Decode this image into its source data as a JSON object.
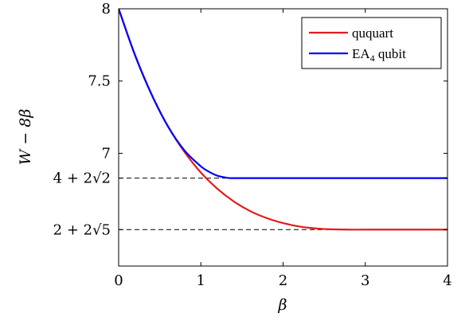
{
  "chart_data": {
    "type": "line",
    "xlabel": "β",
    "ylabel": "W − 8β",
    "xlim": [
      0,
      4
    ],
    "ylim": [
      6.22,
      8
    ],
    "grid": false,
    "legend_placement": "top-right",
    "x_ticks": [
      {
        "value": 0,
        "label": "0"
      },
      {
        "value": 1,
        "label": "1"
      },
      {
        "value": 2,
        "label": "2"
      },
      {
        "value": 3,
        "label": "3"
      },
      {
        "value": 4,
        "label": "4"
      }
    ],
    "y_ticks": [
      {
        "value": 8,
        "label": "8"
      },
      {
        "value": 7.5,
        "label": "7.5"
      },
      {
        "value": 7,
        "label": "7"
      },
      {
        "value": 6.8284,
        "label": "4 + 2√2"
      },
      {
        "value": 6.4721,
        "label": "2 + 2√5"
      }
    ],
    "reference_lines": [
      {
        "y": 6.8284,
        "style": "dashed",
        "color": "#000000"
      },
      {
        "y": 6.4721,
        "style": "dashed",
        "color": "#000000"
      }
    ],
    "series": [
      {
        "name": "ququart",
        "color": "#e41a1c",
        "x": [
          0,
          0.2,
          0.4,
          0.6,
          0.8,
          1.0,
          1.2,
          1.4,
          1.6,
          1.8,
          2.0,
          2.2,
          2.4,
          2.6,
          2.8,
          3.0,
          3.5,
          4.0
        ],
        "y": [
          8.0,
          7.678,
          7.408,
          7.186,
          7.01,
          6.867,
          6.755,
          6.667,
          6.6,
          6.552,
          6.517,
          6.493,
          6.48,
          6.474,
          6.472,
          6.472,
          6.472,
          6.472
        ]
      },
      {
        "name": "EA4 qubit",
        "color": "#0000ff",
        "x": [
          0,
          0.2,
          0.4,
          0.6,
          0.8,
          1.0,
          1.1,
          1.2,
          1.3,
          1.35,
          1.4,
          1.6,
          2.0,
          3.0,
          4.0
        ],
        "y": [
          8.0,
          7.678,
          7.408,
          7.186,
          7.02,
          6.91,
          6.872,
          6.845,
          6.832,
          6.8284,
          6.8284,
          6.8284,
          6.8284,
          6.8284,
          6.8284
        ]
      }
    ]
  },
  "legend": {
    "items": [
      {
        "label": "ququart",
        "color": "#e41a1c"
      },
      {
        "label_main": "EA",
        "label_sub": "4",
        "label_rest": " qubit",
        "color": "#0000ff"
      }
    ]
  }
}
